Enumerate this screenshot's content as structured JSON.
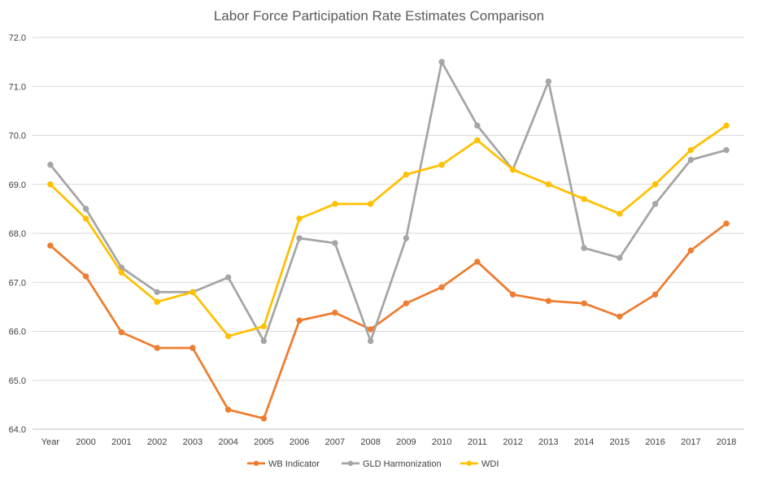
{
  "chart_data": {
    "type": "line",
    "title": "Labor Force Participation Rate Estimates Comparison",
    "categories": [
      "Year",
      "2000",
      "2001",
      "2002",
      "2003",
      "2004",
      "2005",
      "2006",
      "2007",
      "2008",
      "2009",
      "2010",
      "2011",
      "2012",
      "2013",
      "2014",
      "2015",
      "2016",
      "2017",
      "2018"
    ],
    "ylim": [
      64.0,
      72.0
    ],
    "yticks": [
      "64.0",
      "65.0",
      "66.0",
      "67.0",
      "68.0",
      "69.0",
      "70.0",
      "71.0",
      "72.0"
    ],
    "grid": true,
    "legend_position": "bottom",
    "series": [
      {
        "name": "WB Indicator",
        "color": "#ED7D31",
        "values": [
          67.75,
          67.12,
          65.98,
          65.66,
          65.66,
          64.4,
          64.22,
          66.22,
          66.38,
          66.04,
          66.57,
          66.9,
          67.42,
          66.75,
          66.62,
          66.57,
          66.3,
          66.75,
          67.65,
          68.2
        ]
      },
      {
        "name": "GLD Harmonization",
        "color": "#A5A5A5",
        "values": [
          69.4,
          68.5,
          67.3,
          66.8,
          66.8,
          67.1,
          65.8,
          67.9,
          67.8,
          65.8,
          67.9,
          71.5,
          70.2,
          69.3,
          71.1,
          67.7,
          67.5,
          68.6,
          69.5,
          69.7
        ]
      },
      {
        "name": "WDI",
        "color": "#FFC000",
        "values": [
          69.0,
          68.3,
          67.2,
          66.6,
          66.8,
          65.9,
          66.1,
          68.3,
          68.6,
          68.6,
          69.2,
          69.4,
          69.9,
          69.3,
          69.0,
          68.7,
          68.4,
          69.0,
          69.7,
          70.2
        ]
      }
    ]
  }
}
